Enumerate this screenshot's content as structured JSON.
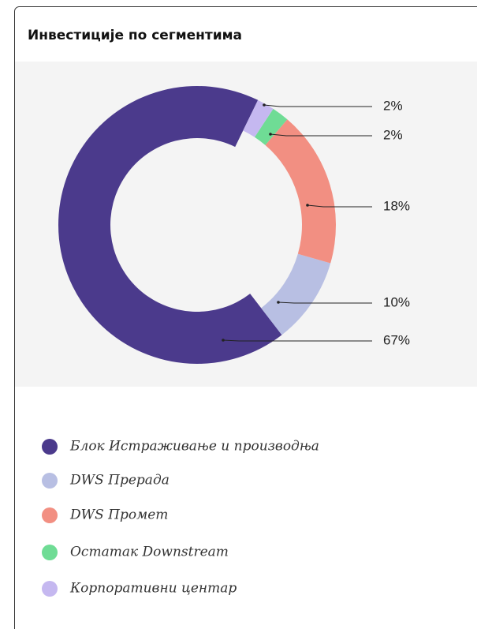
{
  "chart_data": {
    "type": "donut",
    "title": "Инвестиције по сегментима",
    "categories": [
      "Блок Истраживање и производња",
      "DWS Прерада",
      "DWS Промет",
      "Остатак Downstream",
      "Корпоративни центар"
    ],
    "values": [
      67,
      10,
      18,
      2,
      2
    ],
    "value_labels": [
      "67%",
      "10%",
      "18%",
      "2%",
      "2%"
    ],
    "colors": [
      "#4b3a8c",
      "#b8bfe3",
      "#f28f82",
      "#6fdc95",
      "#c5b8f0"
    ]
  }
}
